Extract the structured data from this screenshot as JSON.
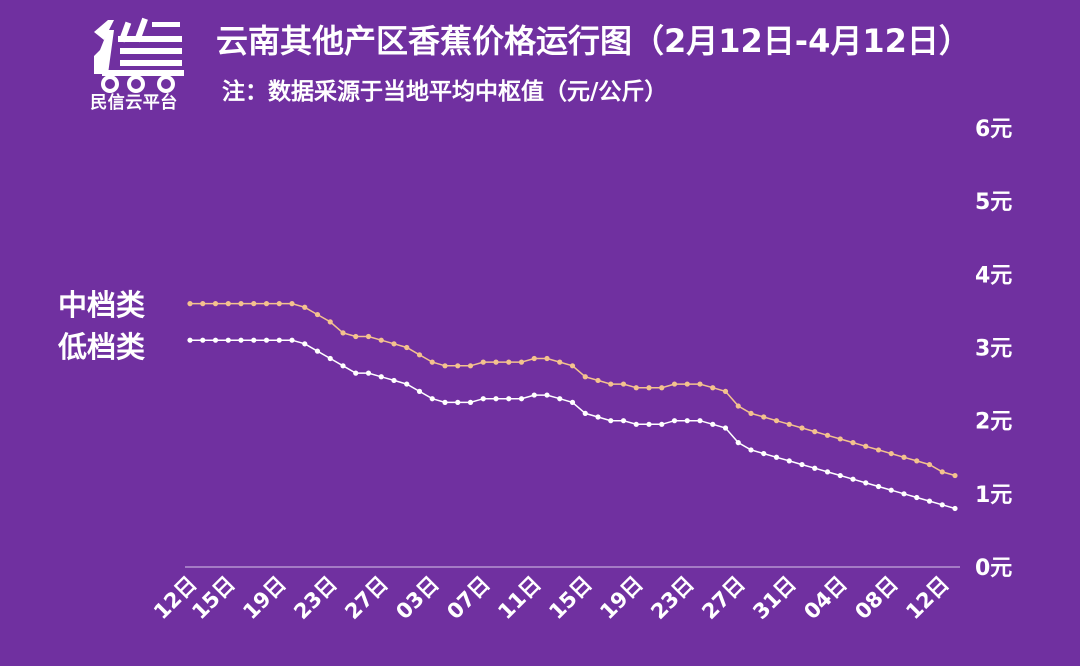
{
  "header": {
    "title": "云南其他产区香蕉价格运行图（2月12日-4月12日）",
    "subtitle": "注：数据采源于当地平均中枢值（元/公斤）",
    "logo_text": "民信云平台",
    "logo_icon": "truck-icon"
  },
  "colors": {
    "background": "#7030a0",
    "series_mid": "#f4c28e",
    "series_low": "#ffffff",
    "axis": "#d9c6ea"
  },
  "chart_data": {
    "type": "line",
    "title": "云南其他产区香蕉价格运行图（2月12日-4月12日）",
    "subtitle": "注：数据采源于当地平均中枢值（元/公斤）",
    "ylim": [
      0,
      6
    ],
    "y_ticks": [
      "0元",
      "1元",
      "2元",
      "3元",
      "4元",
      "5元",
      "6元"
    ],
    "x_ticks": [
      {
        "index": 0,
        "label": "12日"
      },
      {
        "index": 3,
        "label": "15日"
      },
      {
        "index": 7,
        "label": "19日"
      },
      {
        "index": 11,
        "label": "23日"
      },
      {
        "index": 15,
        "label": "27日"
      },
      {
        "index": 19,
        "label": "03日"
      },
      {
        "index": 23,
        "label": "07日"
      },
      {
        "index": 27,
        "label": "11日"
      },
      {
        "index": 31,
        "label": "15日"
      },
      {
        "index": 35,
        "label": "19日"
      },
      {
        "index": 39,
        "label": "23日"
      },
      {
        "index": 43,
        "label": "27日"
      },
      {
        "index": 47,
        "label": "31日"
      },
      {
        "index": 51,
        "label": "04日"
      },
      {
        "index": 55,
        "label": "08日"
      },
      {
        "index": 59,
        "label": "12日"
      }
    ],
    "series": [
      {
        "name": "中档类",
        "values": [
          3.6,
          3.6,
          3.6,
          3.6,
          3.6,
          3.6,
          3.6,
          3.6,
          3.6,
          3.55,
          3.45,
          3.35,
          3.2,
          3.15,
          3.15,
          3.1,
          3.05,
          3.0,
          2.9,
          2.8,
          2.75,
          2.75,
          2.75,
          2.8,
          2.8,
          2.8,
          2.8,
          2.85,
          2.85,
          2.8,
          2.75,
          2.6,
          2.55,
          2.5,
          2.5,
          2.45,
          2.45,
          2.45,
          2.5,
          2.5,
          2.5,
          2.45,
          2.4,
          2.2,
          2.1,
          2.05,
          2.0,
          1.95,
          1.9,
          1.85,
          1.8,
          1.75,
          1.7,
          1.65,
          1.6,
          1.55,
          1.5,
          1.45,
          1.4,
          1.3,
          1.25
        ]
      },
      {
        "name": "低档类",
        "values": [
          3.1,
          3.1,
          3.1,
          3.1,
          3.1,
          3.1,
          3.1,
          3.1,
          3.1,
          3.05,
          2.95,
          2.85,
          2.75,
          2.65,
          2.65,
          2.6,
          2.55,
          2.5,
          2.4,
          2.3,
          2.25,
          2.25,
          2.25,
          2.3,
          2.3,
          2.3,
          2.3,
          2.35,
          2.35,
          2.3,
          2.25,
          2.1,
          2.05,
          2.0,
          2.0,
          1.95,
          1.95,
          1.95,
          2.0,
          2.0,
          2.0,
          1.95,
          1.9,
          1.7,
          1.6,
          1.55,
          1.5,
          1.45,
          1.4,
          1.35,
          1.3,
          1.25,
          1.2,
          1.15,
          1.1,
          1.05,
          1.0,
          0.95,
          0.9,
          0.85,
          0.8
        ]
      }
    ]
  }
}
